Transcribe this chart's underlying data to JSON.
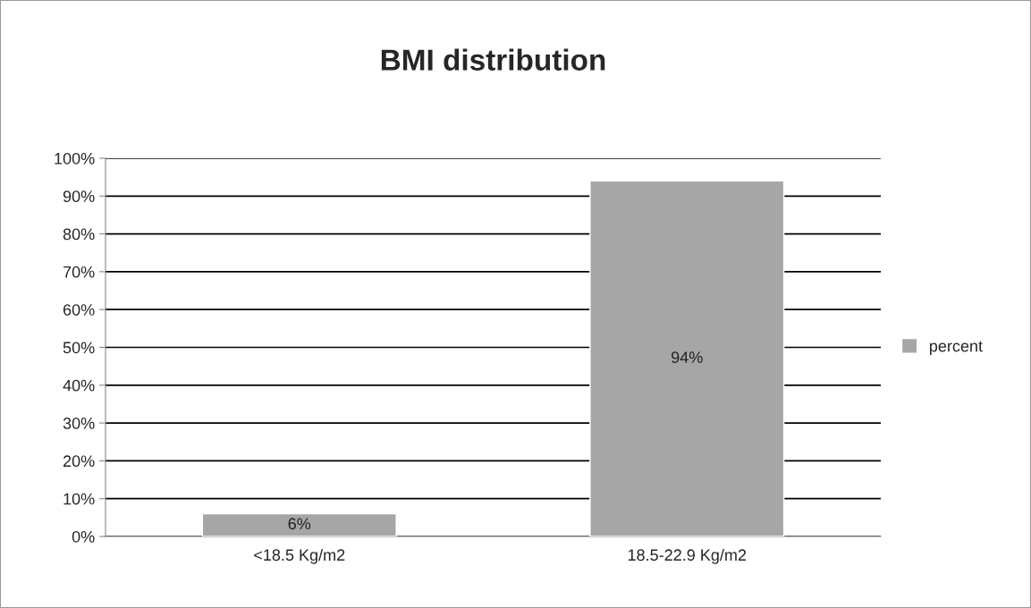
{
  "chart_data": {
    "type": "bar",
    "title": "BMI distribution",
    "categories": [
      "<18.5 Kg/m2",
      "18.5-22.9 Kg/m2"
    ],
    "series": [
      {
        "name": "percent",
        "color": "#a6a6a6",
        "values": [
          6,
          94
        ],
        "value_labels": [
          "6%",
          "94%"
        ]
      }
    ],
    "ylim": [
      0,
      100
    ],
    "yticks": [
      {
        "value": 0,
        "label": "0%"
      },
      {
        "value": 10,
        "label": "10%"
      },
      {
        "value": 20,
        "label": "20%"
      },
      {
        "value": 30,
        "label": "30%"
      },
      {
        "value": 40,
        "label": "40%"
      },
      {
        "value": 50,
        "label": "50%"
      },
      {
        "value": 60,
        "label": "60%"
      },
      {
        "value": 70,
        "label": "70%"
      },
      {
        "value": 80,
        "label": "80%"
      },
      {
        "value": 90,
        "label": "90%"
      },
      {
        "value": 100,
        "label": "100%"
      }
    ],
    "grid": "y",
    "legend": "right"
  }
}
